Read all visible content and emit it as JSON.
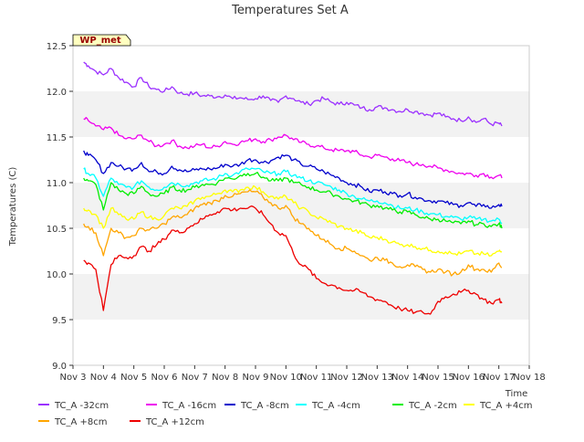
{
  "chart_data": {
    "type": "line",
    "title": "Temperatures Set A",
    "xlabel": "Time",
    "ylabel": "Temperatures (C)",
    "site_label": "WP_met",
    "ylim": [
      9.0,
      12.5
    ],
    "xlim": [
      3,
      18
    ],
    "yticks": [
      9.0,
      9.5,
      10.0,
      10.5,
      11.0,
      11.5,
      12.0,
      12.5
    ],
    "ytick_labels": [
      "9.0",
      "9.5",
      "10.0",
      "10.5",
      "11.0",
      "11.5",
      "12.0",
      "12.5"
    ],
    "xticks": [
      3,
      4,
      5,
      6,
      7,
      8,
      9,
      10,
      11,
      12,
      13,
      14,
      15,
      16,
      17,
      18
    ],
    "xtick_labels": [
      "Nov 3",
      "Nov 4",
      "Nov 5",
      "Nov 6",
      "Nov 7",
      "Nov 8",
      "Nov 9",
      "Nov 10",
      "Nov 11",
      "Nov 12",
      "Nov 13",
      "Nov 14",
      "Nov 15",
      "Nov 16",
      "Nov 17",
      "Nov 18"
    ],
    "x": [
      3.35,
      3.5,
      3.75,
      4.0,
      4.25,
      4.5,
      4.75,
      5.0,
      5.25,
      5.5,
      5.75,
      6.0,
      6.25,
      6.5,
      6.75,
      7.0,
      7.25,
      7.5,
      7.75,
      8.0,
      8.25,
      8.5,
      8.75,
      9.0,
      9.25,
      9.5,
      9.75,
      10.0,
      10.25,
      10.5,
      10.75,
      11.0,
      11.25,
      11.5,
      11.75,
      12.0,
      12.25,
      12.5,
      12.75,
      13.0,
      13.25,
      13.5,
      13.75,
      14.0,
      14.25,
      14.5,
      14.75,
      15.0,
      15.25,
      15.5,
      15.75,
      16.0,
      16.25,
      16.5,
      16.75,
      17.0,
      17.1
    ],
    "grid_bands": true,
    "legend_position": "bottom",
    "series": [
      {
        "name": "TC_A -32cm",
        "color": "#9b30ff",
        "values": [
          12.32,
          12.28,
          12.22,
          12.18,
          12.25,
          12.15,
          12.1,
          12.05,
          12.15,
          12.05,
          12.02,
          12.0,
          12.05,
          11.98,
          11.97,
          11.98,
          11.95,
          11.95,
          11.94,
          11.96,
          11.92,
          11.93,
          11.91,
          11.92,
          11.95,
          11.9,
          11.88,
          11.95,
          11.92,
          11.88,
          11.86,
          11.9,
          11.92,
          11.88,
          11.86,
          11.88,
          11.85,
          11.82,
          11.8,
          11.83,
          11.82,
          11.8,
          11.78,
          11.8,
          11.78,
          11.76,
          11.74,
          11.76,
          11.72,
          11.7,
          11.68,
          11.72,
          11.66,
          11.7,
          11.64,
          11.65,
          11.62
        ]
      },
      {
        "name": "TC_A -16cm",
        "color": "#ee00ee",
        "values": [
          11.7,
          11.68,
          11.62,
          11.58,
          11.6,
          11.52,
          11.48,
          11.48,
          11.52,
          11.45,
          11.4,
          11.42,
          11.46,
          11.4,
          11.38,
          11.4,
          11.42,
          11.38,
          11.4,
          11.45,
          11.42,
          11.44,
          11.46,
          11.48,
          11.45,
          11.47,
          11.5,
          11.52,
          11.47,
          11.44,
          11.42,
          11.4,
          11.38,
          11.36,
          11.35,
          11.35,
          11.34,
          11.3,
          11.28,
          11.3,
          11.28,
          11.26,
          11.24,
          11.22,
          11.2,
          11.2,
          11.18,
          11.16,
          11.14,
          11.12,
          11.1,
          11.1,
          11.08,
          11.1,
          11.06,
          11.08,
          11.05
        ]
      },
      {
        "name": "TC_A -8cm",
        "color": "#0000cc",
        "values": [
          11.35,
          11.3,
          11.25,
          11.1,
          11.22,
          11.18,
          11.15,
          11.15,
          11.22,
          11.12,
          11.12,
          11.1,
          11.18,
          11.14,
          11.12,
          11.14,
          11.15,
          11.15,
          11.16,
          11.2,
          11.18,
          11.2,
          11.25,
          11.25,
          11.22,
          11.24,
          11.28,
          11.3,
          11.25,
          11.2,
          11.18,
          11.15,
          11.12,
          11.08,
          11.05,
          11.0,
          10.98,
          10.95,
          10.9,
          10.92,
          10.9,
          10.88,
          10.86,
          10.88,
          10.84,
          10.82,
          10.8,
          10.8,
          10.78,
          10.76,
          10.75,
          10.78,
          10.74,
          10.76,
          10.72,
          10.76,
          10.74
        ]
      },
      {
        "name": "TC_A -4cm",
        "color": "#00ffff",
        "values": [
          11.15,
          11.1,
          11.05,
          10.85,
          11.05,
          10.98,
          10.95,
          10.95,
          11.02,
          10.95,
          10.92,
          10.95,
          11.0,
          10.98,
          10.97,
          11.0,
          11.02,
          11.03,
          11.05,
          11.1,
          11.08,
          11.12,
          11.15,
          11.15,
          11.12,
          11.1,
          11.1,
          11.12,
          11.08,
          11.05,
          11.02,
          11.0,
          10.98,
          10.95,
          10.92,
          10.88,
          10.85,
          10.82,
          10.8,
          10.8,
          10.78,
          10.75,
          10.72,
          10.72,
          10.7,
          10.68,
          10.66,
          10.65,
          10.63,
          10.62,
          10.6,
          10.62,
          10.6,
          10.6,
          10.58,
          10.6,
          10.56
        ]
      },
      {
        "name": "TC_A -2cm",
        "color": "#00ee00",
        "values": [
          11.05,
          11.02,
          10.98,
          10.7,
          11.0,
          10.92,
          10.88,
          10.88,
          10.96,
          10.88,
          10.85,
          10.88,
          10.95,
          10.92,
          10.92,
          10.95,
          10.98,
          10.98,
          11.0,
          11.05,
          11.04,
          11.08,
          11.1,
          11.1,
          11.06,
          11.02,
          11.02,
          11.05,
          11.0,
          10.98,
          10.95,
          10.92,
          10.9,
          10.88,
          10.85,
          10.82,
          10.8,
          10.78,
          10.75,
          10.75,
          10.72,
          10.7,
          10.68,
          10.68,
          10.65,
          10.62,
          10.6,
          10.6,
          10.58,
          10.56,
          10.55,
          10.58,
          10.54,
          10.55,
          10.52,
          10.55,
          10.5
        ]
      },
      {
        "name": "TC_A +4cm",
        "color": "#ffff00",
        "values": [
          10.72,
          10.7,
          10.65,
          10.5,
          10.72,
          10.65,
          10.6,
          10.6,
          10.68,
          10.62,
          10.6,
          10.64,
          10.72,
          10.72,
          10.74,
          10.8,
          10.84,
          10.85,
          10.88,
          10.92,
          10.9,
          10.92,
          10.95,
          10.95,
          10.9,
          10.85,
          10.82,
          10.85,
          10.78,
          10.72,
          10.68,
          10.62,
          10.6,
          10.56,
          10.52,
          10.5,
          10.47,
          10.45,
          10.4,
          10.4,
          10.38,
          10.35,
          10.32,
          10.32,
          10.3,
          10.28,
          10.26,
          10.25,
          10.24,
          10.22,
          10.22,
          10.25,
          10.22,
          10.22,
          10.2,
          10.25,
          10.24
        ]
      },
      {
        "name": "TC_A +8cm",
        "color": "#ffa500",
        "values": [
          10.55,
          10.52,
          10.45,
          10.2,
          10.5,
          10.45,
          10.4,
          10.42,
          10.5,
          10.48,
          10.5,
          10.55,
          10.62,
          10.62,
          10.65,
          10.72,
          10.76,
          10.78,
          10.8,
          10.86,
          10.85,
          10.88,
          10.9,
          10.9,
          10.84,
          10.78,
          10.72,
          10.75,
          10.62,
          10.55,
          10.5,
          10.42,
          10.38,
          10.32,
          10.28,
          10.28,
          10.25,
          10.2,
          10.15,
          10.18,
          10.15,
          10.12,
          10.08,
          10.1,
          10.08,
          10.05,
          10.02,
          10.05,
          10.02,
          10.0,
          10.02,
          10.1,
          10.05,
          10.05,
          10.02,
          10.12,
          10.07
        ]
      },
      {
        "name": "TC_A +12cm",
        "color": "#ee0000",
        "values": [
          10.15,
          10.12,
          10.05,
          9.6,
          10.1,
          10.2,
          10.18,
          10.2,
          10.3,
          10.25,
          10.32,
          10.38,
          10.48,
          10.45,
          10.5,
          10.55,
          10.6,
          10.65,
          10.68,
          10.72,
          10.7,
          10.72,
          10.72,
          10.72,
          10.65,
          10.55,
          10.45,
          10.42,
          10.22,
          10.1,
          10.05,
          9.95,
          9.9,
          9.88,
          9.85,
          9.82,
          9.82,
          9.8,
          9.75,
          9.72,
          9.7,
          9.65,
          9.62,
          9.6,
          9.58,
          9.58,
          9.56,
          9.7,
          9.75,
          9.78,
          9.8,
          9.82,
          9.78,
          9.72,
          9.68,
          9.72,
          9.68
        ]
      }
    ]
  }
}
